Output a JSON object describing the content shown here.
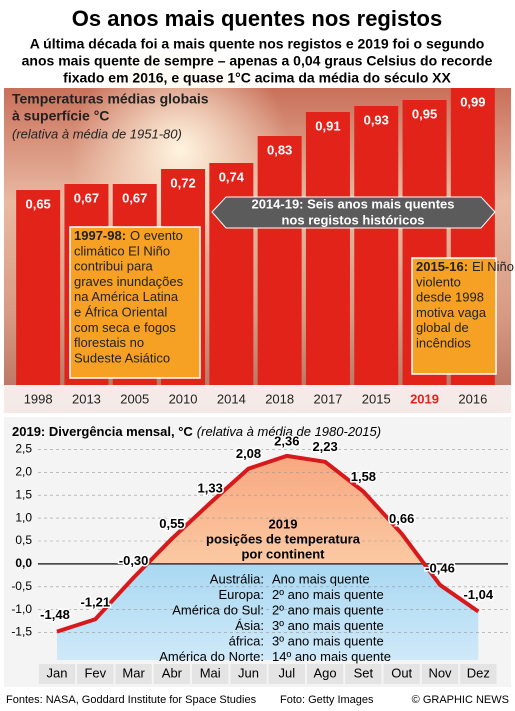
{
  "title": "Os anos mais quentes nos registos",
  "subtitle": [
    "A última década foi a mais quente nos registos e 2019 foi o segundo",
    "anos mais quente de sempre – apenas a 0,04 graus Celsius do recorde",
    "fixado em 2016, e quase 1°C acima da média do século XX"
  ],
  "chart_data": [
    {
      "type": "bar",
      "title": [
        "Temperaturas médias globais",
        "à superfície °C"
      ],
      "subtitle": "(relativa à média de 1951-80)",
      "categories": [
        "1998",
        "2013",
        "2005",
        "2010",
        "2014",
        "2018",
        "2017",
        "2015",
        "2019",
        "2016"
      ],
      "values": [
        0.65,
        0.67,
        0.67,
        0.72,
        0.74,
        0.83,
        0.91,
        0.93,
        0.95,
        0.99
      ],
      "value_labels": [
        "0,65",
        "0,67",
        "0,67",
        "0,72",
        "0,74",
        "0,83",
        "0,91",
        "0,93",
        "0,95",
        "0,99"
      ],
      "color": "#e2231a",
      "highlight": "2019",
      "ylim": [
        0,
        1
      ],
      "annotations": [
        {
          "lines": [
            "2014-19: Seis anos mais quentes",
            "nos registos históricos"
          ]
        },
        {
          "head": "1997-98:",
          "lines": [
            "O evento",
            "climático El Niño",
            "contribui para",
            "graves inundações",
            "na América Latina",
            "e África Oriental",
            "com seca e fogos",
            "florestais no",
            "Sudeste Asiático"
          ]
        },
        {
          "head": "2015-16:",
          "lines": [
            "El Niño mais",
            "violento",
            "desde 1998",
            "motiva vaga",
            "global de",
            "incêndios"
          ]
        }
      ]
    },
    {
      "type": "line",
      "title": "2019: Divergência mensal, °C",
      "subtitle": "(relativa à média de 1980-2015)",
      "categories": [
        "Jan",
        "Fev",
        "Mar",
        "Abr",
        "Mai",
        "Jun",
        "Jul",
        "Ago",
        "Set",
        "Out",
        "Nov",
        "Dez"
      ],
      "values": [
        -1.48,
        -1.21,
        -0.3,
        0.55,
        1.33,
        2.08,
        2.36,
        2.23,
        1.58,
        0.66,
        -0.46,
        -1.04
      ],
      "value_labels": [
        "-1,48",
        "-1,21",
        "-0,30",
        "0,55",
        "1,33",
        "2,08",
        "2,36",
        "2,23",
        "1,58",
        "0,66",
        "-0,46",
        "-1,04"
      ],
      "color": "#d7191c",
      "ylim": [
        -2.1,
        2.75
      ],
      "yticks": [
        {
          "value": 2.5,
          "label": "2,5"
        },
        {
          "value": 2.0,
          "label": "2,0"
        },
        {
          "value": 1.5,
          "label": "1,5"
        },
        {
          "value": 1.0,
          "label": "1,0"
        },
        {
          "value": 0.5,
          "label": "0,5"
        },
        {
          "value": 0.0,
          "label": "0,0"
        },
        {
          "value": -0.5,
          "label": "-0,5"
        },
        {
          "value": -1.0,
          "label": "-1,0"
        },
        {
          "value": -1.5,
          "label": "-1,5"
        }
      ],
      "grid": true,
      "panel_title": [
        "2019",
        "posições de temperatura",
        "por continent"
      ],
      "continents": [
        [
          "Austrália:",
          "Ano mais quente"
        ],
        [
          "Europa:",
          "2º ano mais quente"
        ],
        [
          "América do Sul:",
          "2º ano mais quente"
        ],
        [
          "Ásia:",
          "3º ano mais quente"
        ],
        [
          "áfrica:",
          "3º ano mais quente"
        ],
        [
          "América do Norte:",
          "14º ano mais quente"
        ]
      ]
    }
  ],
  "footer": {
    "source": "Fontes: NASA, Goddard Institute for Space Studies",
    "photo": "Foto: Getty Images",
    "credit": "© GRAPHIC NEWS"
  }
}
